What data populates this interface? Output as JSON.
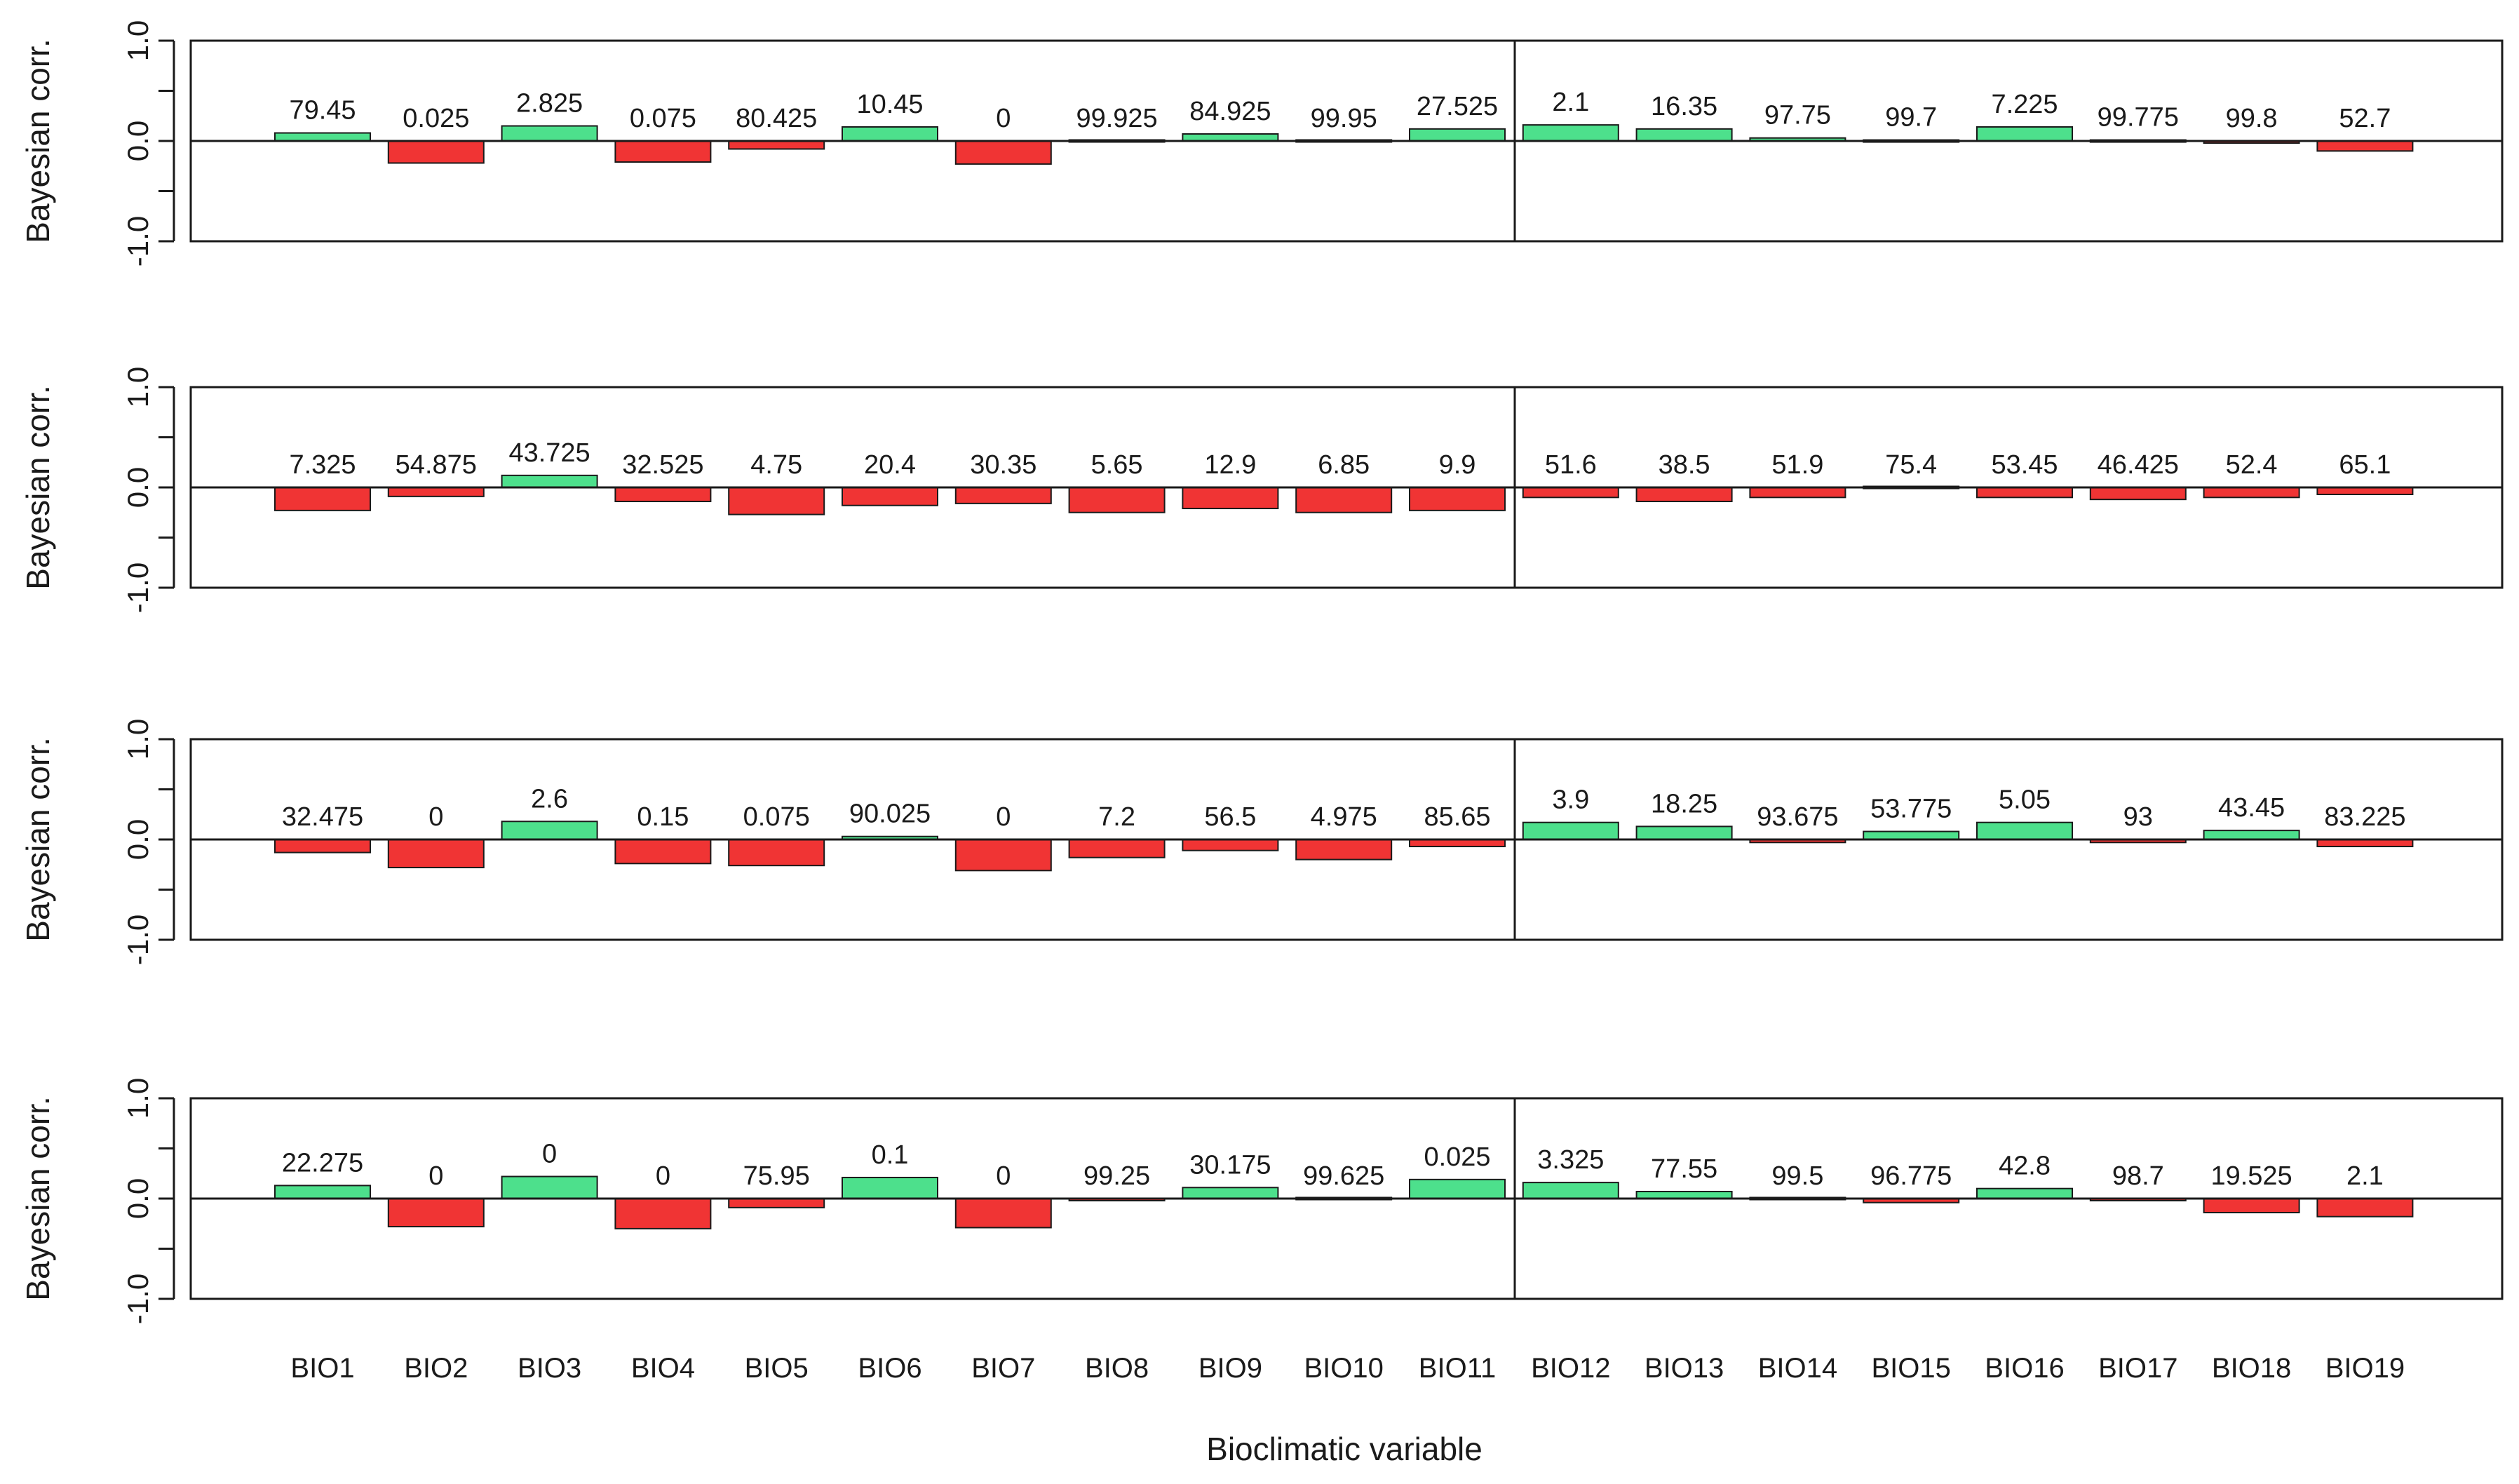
{
  "figure": {
    "xlabel": "Bioclimatic variable",
    "ylabel": "Bayesian corr.",
    "colors": {
      "positive": "#4de08c",
      "negative": "#f03434",
      "axis": "#1a1a1a"
    }
  },
  "chart_data": [
    {
      "type": "bar",
      "panel": 1,
      "ylabel": "Bayesian corr.",
      "xlabel": "Bioclimatic variable",
      "ylim": [
        -1.0,
        1.0
      ],
      "yticks": [
        "1.0",
        "0.0",
        "-1.0"
      ],
      "categories": [
        "BIO1",
        "BIO2",
        "BIO3",
        "BIO4",
        "BIO5",
        "BIO6",
        "BIO7",
        "BIO8",
        "BIO9",
        "BIO10",
        "BIO11",
        "BIO12",
        "BIO13",
        "BIO14",
        "BIO15",
        "BIO16",
        "BIO17",
        "BIO18",
        "BIO19"
      ],
      "values": [
        0.08,
        -0.22,
        0.15,
        -0.21,
        -0.08,
        0.14,
        -0.23,
        0.0,
        0.07,
        0.0,
        0.12,
        0.16,
        0.12,
        0.03,
        0.01,
        0.14,
        0.01,
        -0.01,
        -0.1
      ],
      "labels": [
        "79.45",
        "0.025",
        "2.825",
        "0.075",
        "80.425",
        "10.45",
        "0",
        "99.925",
        "84.925",
        "99.95",
        "27.525",
        "2.1",
        "16.35",
        "97.75",
        "99.7",
        "7.225",
        "99.775",
        "99.8",
        "52.7"
      ]
    },
    {
      "type": "bar",
      "panel": 2,
      "ylabel": "Bayesian corr.",
      "xlabel": "Bioclimatic variable",
      "ylim": [
        -1.0,
        1.0
      ],
      "yticks": [
        "1.0",
        "0.0",
        "-1.0"
      ],
      "categories": [
        "BIO1",
        "BIO2",
        "BIO3",
        "BIO4",
        "BIO5",
        "BIO6",
        "BIO7",
        "BIO8",
        "BIO9",
        "BIO10",
        "BIO11",
        "BIO12",
        "BIO13",
        "BIO14",
        "BIO15",
        "BIO16",
        "BIO17",
        "BIO18",
        "BIO19"
      ],
      "values": [
        -0.23,
        -0.09,
        0.12,
        -0.14,
        -0.27,
        -0.18,
        -0.16,
        -0.25,
        -0.21,
        -0.25,
        -0.23,
        -0.1,
        -0.14,
        -0.1,
        0.0,
        -0.1,
        -0.12,
        -0.1,
        -0.07
      ],
      "labels": [
        "7.325",
        "54.875",
        "43.725",
        "32.525",
        "4.75",
        "20.4",
        "30.35",
        "5.65",
        "12.9",
        "6.85",
        "9.9",
        "51.6",
        "38.5",
        "51.9",
        "75.4",
        "53.45",
        "46.425",
        "52.4",
        "65.1"
      ]
    },
    {
      "type": "bar",
      "panel": 3,
      "ylabel": "Bayesian corr.",
      "xlabel": "Bioclimatic variable",
      "ylim": [
        -1.0,
        1.0
      ],
      "yticks": [
        "1.0",
        "0.0",
        "-1.0"
      ],
      "categories": [
        "BIO1",
        "BIO2",
        "BIO3",
        "BIO4",
        "BIO5",
        "BIO6",
        "BIO7",
        "BIO8",
        "BIO9",
        "BIO10",
        "BIO11",
        "BIO12",
        "BIO13",
        "BIO14",
        "BIO15",
        "BIO16",
        "BIO17",
        "BIO18",
        "BIO19"
      ],
      "values": [
        -0.13,
        -0.28,
        0.18,
        -0.24,
        -0.26,
        0.03,
        -0.31,
        -0.18,
        -0.11,
        -0.2,
        -0.07,
        0.17,
        0.13,
        -0.03,
        0.08,
        0.17,
        -0.03,
        0.09,
        -0.07
      ],
      "labels": [
        "32.475",
        "0",
        "2.6",
        "0.15",
        "0.075",
        "90.025",
        "0",
        "7.2",
        "56.5",
        "4.975",
        "85.65",
        "3.9",
        "18.25",
        "93.675",
        "53.775",
        "5.05",
        "93",
        "43.45",
        "83.225"
      ]
    },
    {
      "type": "bar",
      "panel": 4,
      "ylabel": "Bayesian corr.",
      "xlabel": "Bioclimatic variable",
      "ylim": [
        -1.0,
        1.0
      ],
      "yticks": [
        "1.0",
        "0.0",
        "-1.0"
      ],
      "categories": [
        "BIO1",
        "BIO2",
        "BIO3",
        "BIO4",
        "BIO5",
        "BIO6",
        "BIO7",
        "BIO8",
        "BIO9",
        "BIO10",
        "BIO11",
        "BIO12",
        "BIO13",
        "BIO14",
        "BIO15",
        "BIO16",
        "BIO17",
        "BIO18",
        "BIO19"
      ],
      "values": [
        0.13,
        -0.28,
        0.22,
        -0.3,
        -0.09,
        0.21,
        -0.29,
        -0.02,
        0.11,
        0.0,
        0.19,
        0.16,
        0.07,
        0.0,
        -0.04,
        0.1,
        -0.02,
        -0.14,
        -0.18
      ],
      "labels": [
        "22.275",
        "0",
        "0",
        "0",
        "75.95",
        "0.1",
        "0",
        "99.25",
        "30.175",
        "99.625",
        "0.025",
        "3.325",
        "77.55",
        "99.5",
        "96.775",
        "42.8",
        "98.7",
        "19.525",
        "2.1"
      ]
    }
  ]
}
